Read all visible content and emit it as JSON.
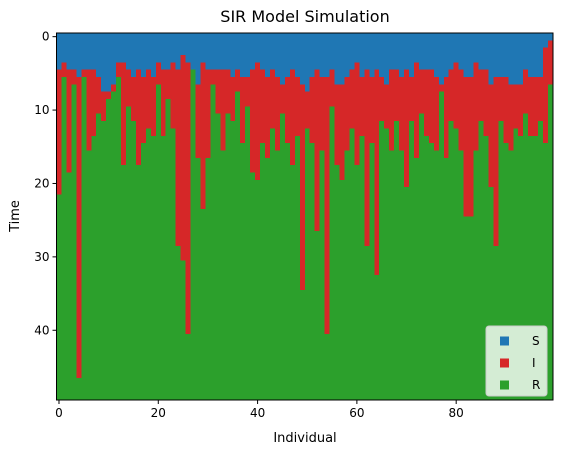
{
  "chart_data": {
    "type": "heatmap",
    "title": "SIR Model Simulation",
    "xlabel": "Individual",
    "ylabel": "Time",
    "x_range": [
      0,
      99
    ],
    "y_range": [
      0,
      49
    ],
    "y_inverted": true,
    "x_ticks": [
      "0",
      "20",
      "40",
      "60",
      "80"
    ],
    "y_ticks": [
      "0",
      "10",
      "20",
      "30",
      "40"
    ],
    "grid": false,
    "legend_position": "lower-right",
    "legend": [
      {
        "label": "S",
        "color": "#1f77b4"
      },
      {
        "label": "I",
        "color": "#d62728"
      },
      {
        "label": "R",
        "color": "#2ca02c"
      }
    ],
    "colors": {
      "S": "#1f77b4",
      "I": "#d62728",
      "R": "#2ca02c"
    },
    "infection_start": [
      5,
      4,
      5,
      5,
      6,
      5,
      5,
      5,
      6,
      8,
      8,
      7,
      4,
      4,
      5,
      6,
      5,
      6,
      5,
      6,
      4,
      5,
      5,
      4,
      5,
      3,
      4,
      5,
      7,
      4,
      5,
      5,
      5,
      5,
      5,
      6,
      5,
      6,
      6,
      5,
      4,
      5,
      6,
      5,
      6,
      7,
      6,
      5,
      6,
      7,
      8,
      6,
      5,
      6,
      6,
      5,
      7,
      7,
      6,
      5,
      4,
      6,
      5,
      6,
      5,
      6,
      7,
      5,
      5,
      6,
      5,
      6,
      4,
      5,
      5,
      5,
      6,
      7,
      6,
      5,
      4,
      5,
      6,
      6,
      4,
      5,
      5,
      7,
      6,
      6,
      6,
      7,
      7,
      7,
      5,
      6,
      6,
      6,
      2,
      1
    ],
    "recovery_start": [
      22,
      6,
      19,
      7,
      47,
      6,
      16,
      14,
      11,
      12,
      9,
      8,
      6,
      18,
      10,
      12,
      18,
      15,
      13,
      14,
      7,
      14,
      9,
      13,
      29,
      31,
      41,
      5,
      17,
      24,
      17,
      7,
      11,
      16,
      11,
      12,
      8,
      15,
      10,
      19,
      20,
      15,
      17,
      13,
      16,
      11,
      15,
      18,
      14,
      35,
      13,
      15,
      27,
      16,
      41,
      10,
      18,
      20,
      16,
      13,
      18,
      14,
      29,
      15,
      33,
      12,
      13,
      16,
      12,
      16,
      21,
      12,
      17,
      11,
      14,
      15,
      16,
      8,
      17,
      12,
      13,
      16,
      25,
      25,
      16,
      12,
      14,
      21,
      29,
      12,
      15,
      16,
      13,
      14,
      11,
      14,
      14,
      12,
      15,
      7
    ]
  }
}
